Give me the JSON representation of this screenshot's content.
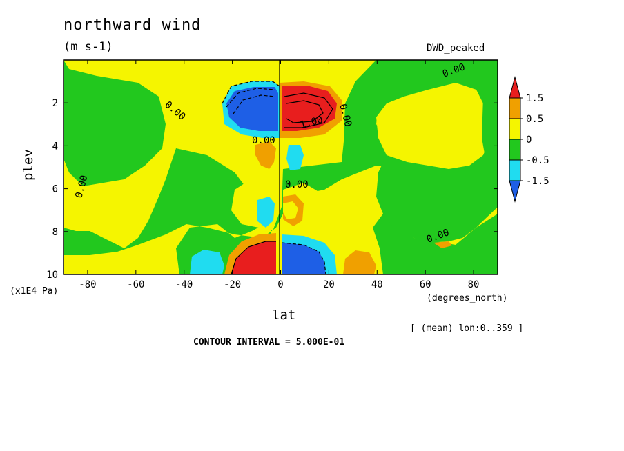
{
  "chart_data": {
    "type": "heatmap",
    "title": "northward wind",
    "units": "(m s-1)",
    "dataset": "DWD_peaked",
    "xlabel": "lat",
    "x_units": "(degrees_north)",
    "ylabel": "plev",
    "y_units": "(x1E4 Pa)",
    "xlim": [
      -90,
      90
    ],
    "ylim": [
      10,
      0
    ],
    "x_ticks": [
      -80,
      -60,
      -40,
      -20,
      0,
      20,
      40,
      60,
      80
    ],
    "y_ticks": [
      2,
      4,
      6,
      8,
      10
    ],
    "averaging_note": "[ (mean) lon:0..359 ]",
    "contour_interval_text": "CONTOUR INTERVAL = 5.000E-01",
    "contour_labels": [
      "0.00",
      "1.00"
    ],
    "colorbar": {
      "tick_labels": [
        "1.5",
        "0.5",
        "0",
        "-0.5",
        "-1.5"
      ],
      "levels": [
        -1.5,
        -1,
        -0.5,
        0,
        0.5,
        1,
        1.5
      ],
      "colors": [
        "#1e5fe6",
        "#20dcf0",
        "#22c81e",
        "#f5f500",
        "#f0a000",
        "#e81e1e"
      ]
    }
  }
}
